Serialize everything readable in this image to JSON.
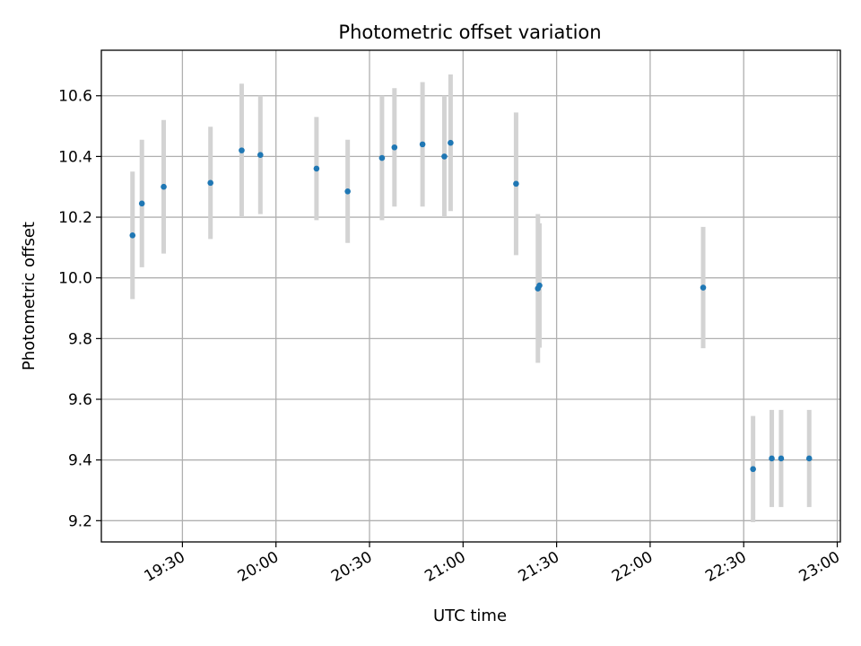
{
  "chart_data": {
    "type": "scatter",
    "title": "Photometric offset variation",
    "xlabel": "UTC time",
    "ylabel": "Photometric offset",
    "x_ticks": [
      "19:30",
      "20:00",
      "20:30",
      "21:00",
      "21:30",
      "22:00",
      "22:30",
      "23:00"
    ],
    "y_ticks": [
      "9.2",
      "9.4",
      "9.6",
      "9.8",
      "10.0",
      "10.2",
      "10.4",
      "10.6"
    ],
    "xlim": [
      "19:04",
      "23:01"
    ],
    "ylim": [
      9.13,
      10.75
    ],
    "grid": true,
    "colors": {
      "point": "#1f77b4",
      "errorbar": "#d3d3d3",
      "grid": "#b0b0b0"
    },
    "points": [
      {
        "time": "19:14",
        "y": 10.14,
        "yerr": 0.21
      },
      {
        "time": "19:17",
        "y": 10.245,
        "yerr": 0.21
      },
      {
        "time": "19:24",
        "y": 10.3,
        "yerr": 0.22
      },
      {
        "time": "19:39",
        "y": 10.313,
        "yerr": 0.185
      },
      {
        "time": "19:49",
        "y": 10.42,
        "yerr": 0.22
      },
      {
        "time": "19:55",
        "y": 10.405,
        "yerr": 0.195
      },
      {
        "time": "20:13",
        "y": 10.36,
        "yerr": 0.17
      },
      {
        "time": "20:23",
        "y": 10.285,
        "yerr": 0.17
      },
      {
        "time": "20:34",
        "y": 10.395,
        "yerr": 0.205
      },
      {
        "time": "20:38",
        "y": 10.43,
        "yerr": 0.195
      },
      {
        "time": "20:47",
        "y": 10.44,
        "yerr": 0.205
      },
      {
        "time": "20:54",
        "y": 10.4,
        "yerr": 0.2
      },
      {
        "time": "20:56",
        "y": 10.445,
        "yerr": 0.225
      },
      {
        "time": "21:17",
        "y": 10.31,
        "yerr": 0.235
      },
      {
        "time": "21:24",
        "y": 9.965,
        "yerr": 0.245
      },
      {
        "time": "21:24.5",
        "y": 9.975,
        "yerr": 0.205
      },
      {
        "time": "22:17",
        "y": 9.968,
        "yerr": 0.2
      },
      {
        "time": "22:33",
        "y": 9.37,
        "yerr": 0.175
      },
      {
        "time": "22:39",
        "y": 9.405,
        "yerr": 0.16
      },
      {
        "time": "22:42",
        "y": 9.405,
        "yerr": 0.16
      },
      {
        "time": "22:51",
        "y": 9.405,
        "yerr": 0.16
      }
    ]
  }
}
